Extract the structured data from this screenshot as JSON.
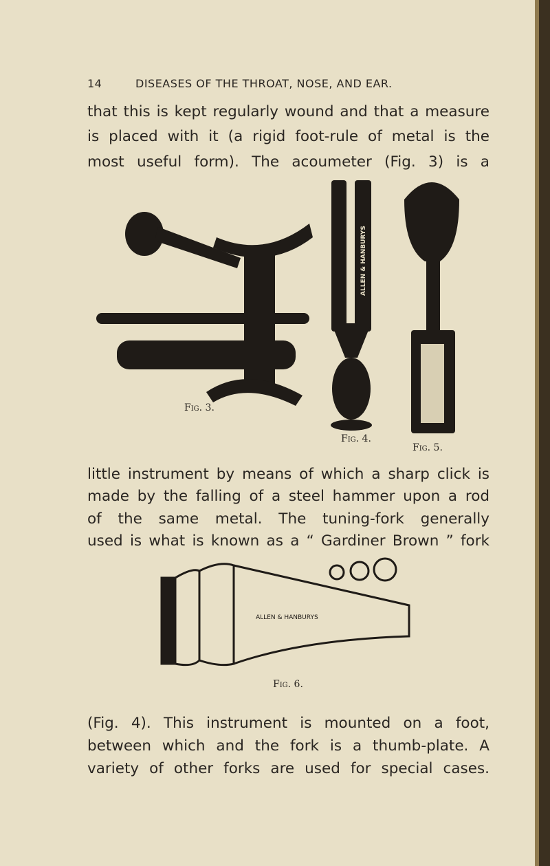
{
  "header": {
    "page_number": "14",
    "running_title": "DISEASES OF THE THROAT, NOSE, AND EAR."
  },
  "paragraphs": [
    {
      "lines": [
        "that this is kept regularly wound and that a measure",
        "is placed with it (a rigid foot-rule of metal is the",
        "most useful form). The acoumeter (Fig. 3) is a"
      ]
    },
    {
      "lines": [
        "little instrument by means of which a sharp click is",
        "made by the falling of a steel hammer upon a rod",
        "of the same metal. The tuning-fork generally",
        "used is what is known as a “ Gardiner Brown ” fork"
      ]
    },
    {
      "lines": [
        "(Fig. 4). This instrument is mounted on a foot,",
        "between which and the fork is a thumb-plate. A",
        "variety of other forks are used for special cases."
      ]
    }
  ],
  "figures": {
    "fig3": {
      "caption": "Fig. 3."
    },
    "fig4": {
      "caption": "Fig. 4.",
      "engraving": "ALLEN & HANBURYS"
    },
    "fig5": {
      "caption": "Fig. 5."
    },
    "fig6": {
      "caption": "Fig. 6.",
      "engraving": "ALLEN & HANBURYS"
    }
  }
}
